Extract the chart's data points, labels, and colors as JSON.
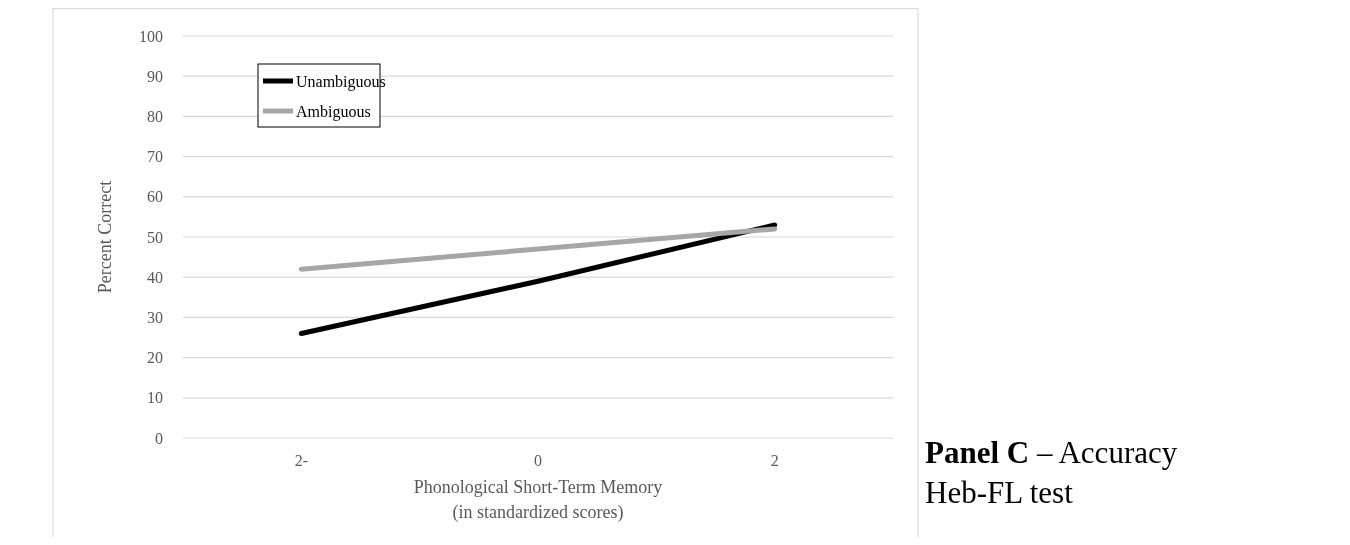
{
  "chart_data": {
    "type": "line",
    "title": "Panel C",
    "subtitle": "– Accuracy Heb-FL test",
    "xlabel": "Phonological Short-Term Memory\n(in standardized scores)",
    "ylabel": "Percent Correct",
    "categories": [
      "2-",
      "0",
      "2"
    ],
    "series": [
      {
        "name": "Unambiguous",
        "color": "#000000",
        "values": [
          26,
          39,
          53
        ]
      },
      {
        "name": "Ambiguous",
        "color": "#a6a6a6",
        "values": [
          42,
          47,
          52
        ]
      }
    ],
    "ylim": [
      0,
      100
    ],
    "yticks": [
      0,
      10,
      20,
      30,
      40,
      50,
      60,
      70,
      80,
      90,
      100
    ],
    "grid": "y",
    "legend": "top left",
    "marker": "none",
    "line_style": "solid"
  }
}
